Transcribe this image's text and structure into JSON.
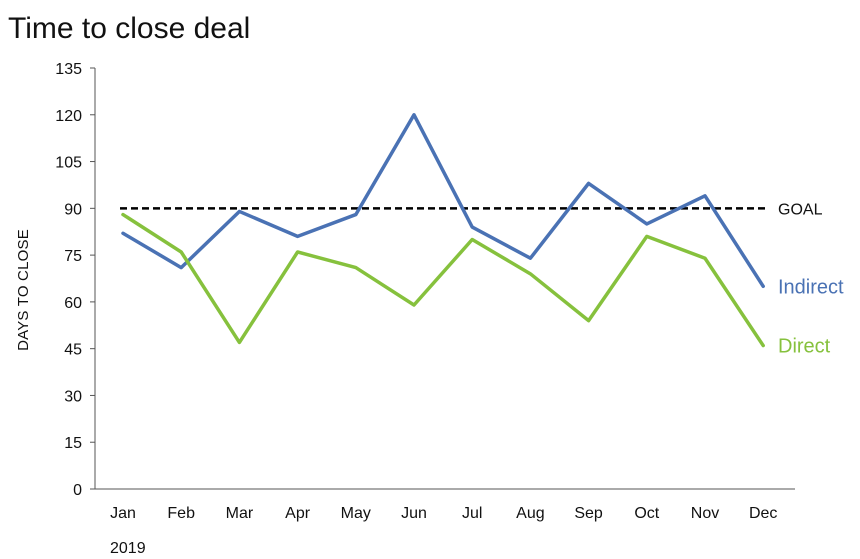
{
  "chart_data": {
    "type": "line",
    "title": "Time to close deal",
    "ylabel": "DAYS TO CLOSE",
    "xlabel": "",
    "year_label": "2019",
    "categories": [
      "Jan",
      "Feb",
      "Mar",
      "Apr",
      "May",
      "Jun",
      "Jul",
      "Aug",
      "Sep",
      "Oct",
      "Nov",
      "Dec"
    ],
    "ylim": [
      0,
      135
    ],
    "yticks": [
      0,
      15,
      30,
      45,
      60,
      75,
      90,
      105,
      120,
      135
    ],
    "grid": false,
    "series": [
      {
        "name": "Indirect",
        "color": "#4a72b4",
        "values": [
          82,
          71,
          89,
          81,
          88,
          120,
          84,
          74,
          98,
          85,
          94,
          65
        ]
      },
      {
        "name": "Direct",
        "color": "#86c13d",
        "values": [
          88,
          76,
          47,
          76,
          71,
          59,
          80,
          69,
          54,
          81,
          74,
          46
        ]
      }
    ],
    "goal": {
      "label": "GOAL",
      "value": 90,
      "color": "#000000"
    }
  }
}
